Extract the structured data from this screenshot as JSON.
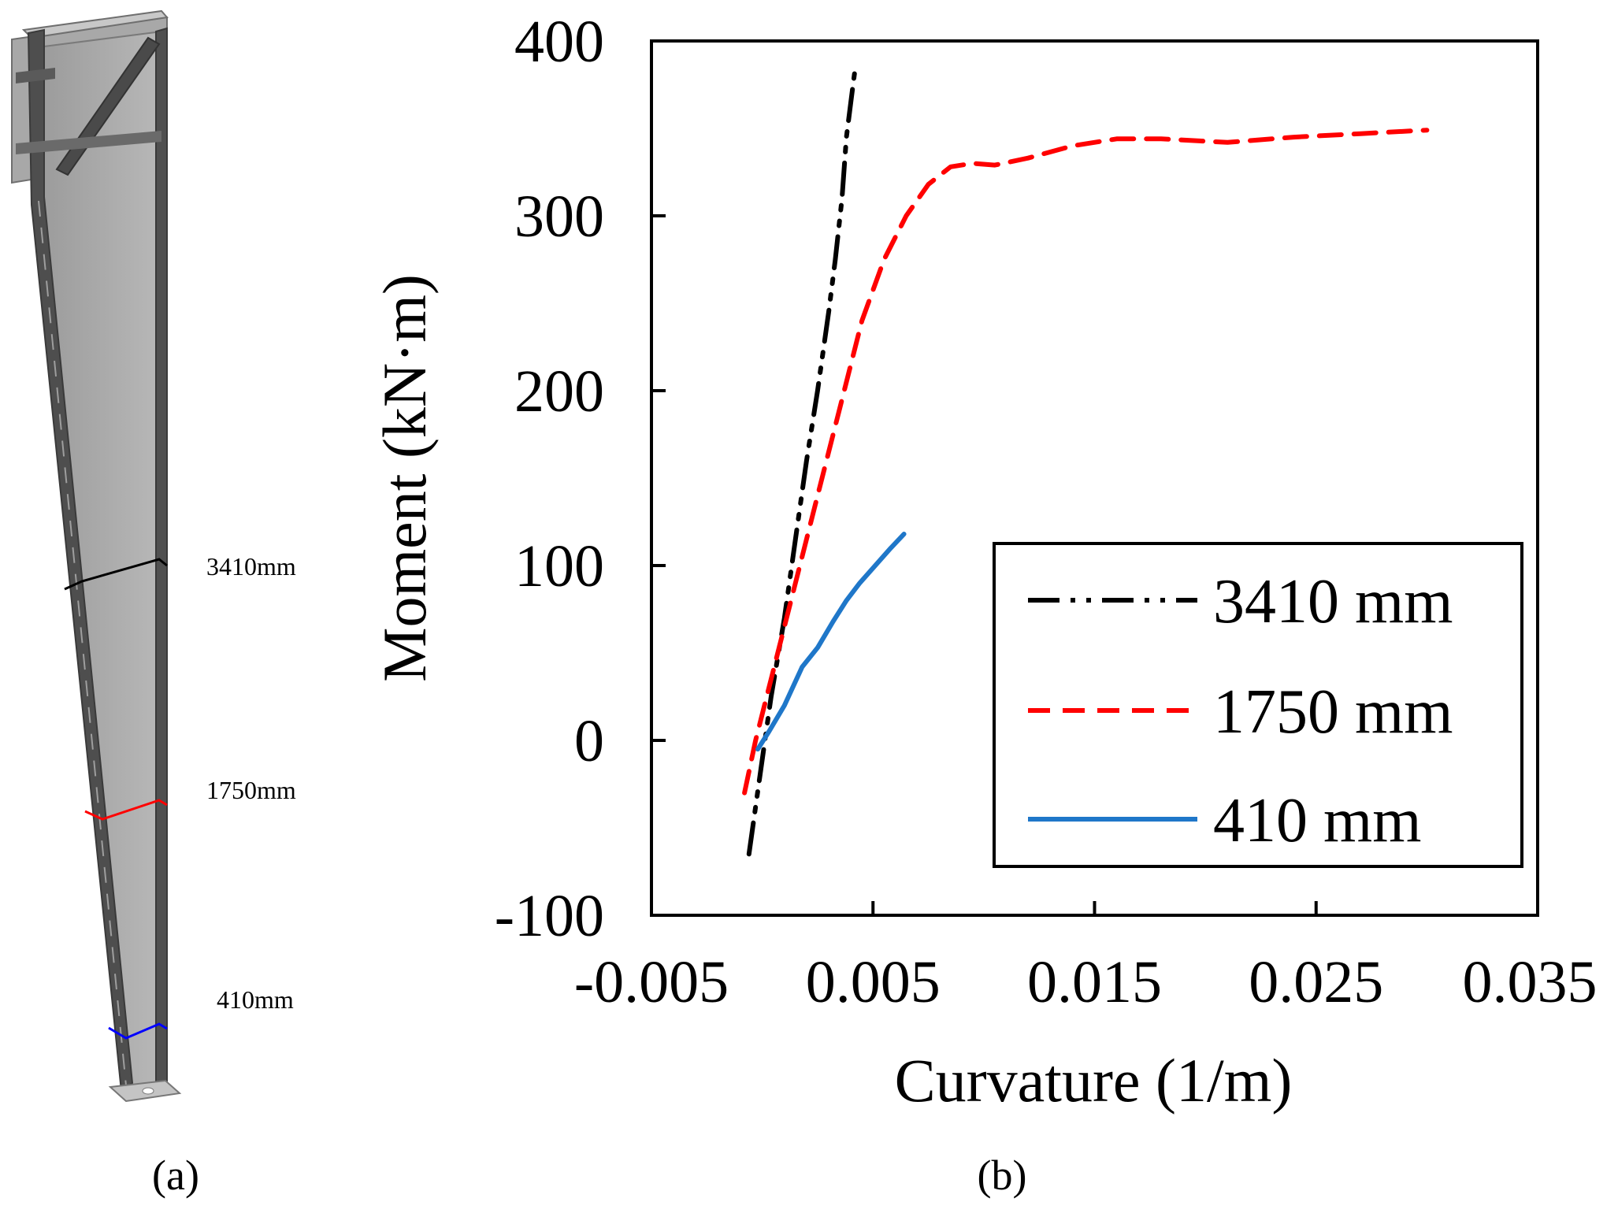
{
  "panel_a": {
    "label": "(a)",
    "sections": [
      {
        "name": "3410mm",
        "color": "#000000"
      },
      {
        "name": "1750mm",
        "color": "#ff0000"
      },
      {
        "name": "410mm",
        "color": "#0000ff"
      }
    ]
  },
  "panel_b": {
    "label": "(b)"
  },
  "chart_data": {
    "type": "line",
    "title": "",
    "xlabel": "Curvature (1/m)",
    "ylabel": "Moment (kN·m)",
    "xlim": [
      -0.005,
      0.035
    ],
    "ylim": [
      -100,
      400
    ],
    "xticks": [
      -0.005,
      0.005,
      0.015,
      0.025,
      0.035
    ],
    "xtick_labels": [
      "-0.005",
      "0.005",
      "0.015",
      "0.025",
      "0.035"
    ],
    "yticks": [
      -100,
      0,
      100,
      200,
      300,
      400
    ],
    "ytick_labels": [
      "-100",
      "0",
      "100",
      "200",
      "300",
      "400"
    ],
    "grid": false,
    "legend_position": "bottom-right",
    "series": [
      {
        "name": "3410 mm",
        "color": "#000000",
        "style": "dash-dot-dot",
        "x": [
          -0.0006,
          -0.0001,
          0.0004,
          0.001,
          0.0015,
          0.002,
          0.0025,
          0.003,
          0.0033,
          0.0036,
          0.0038,
          0.004,
          0.0042
        ],
        "y": [
          -65,
          -20,
          25,
          70,
          115,
          160,
          200,
          245,
          275,
          310,
          345,
          365,
          385
        ]
      },
      {
        "name": "1750 mm",
        "color": "#ff0000",
        "style": "dashed",
        "x": [
          -0.0008,
          -0.0003,
          0.0005,
          0.0015,
          0.0025,
          0.0035,
          0.0045,
          0.0055,
          0.0065,
          0.0075,
          0.0085,
          0.0095,
          0.0105,
          0.012,
          0.014,
          0.016,
          0.018,
          0.021,
          0.024,
          0.027,
          0.03
        ],
        "y": [
          -30,
          0,
          40,
          90,
          140,
          190,
          240,
          275,
          300,
          318,
          328,
          330,
          329,
          333,
          340,
          344,
          344,
          342,
          345,
          347,
          349
        ]
      },
      {
        "name": "410 mm",
        "color": "#1f77c9",
        "style": "solid",
        "x": [
          -0.0002,
          0.0003,
          0.001,
          0.0018,
          0.0025,
          0.0032,
          0.0038,
          0.0044,
          0.0051,
          0.0058,
          0.0064
        ],
        "y": [
          -5,
          5,
          20,
          42,
          53,
          68,
          80,
          90,
          100,
          110,
          118
        ]
      }
    ]
  }
}
